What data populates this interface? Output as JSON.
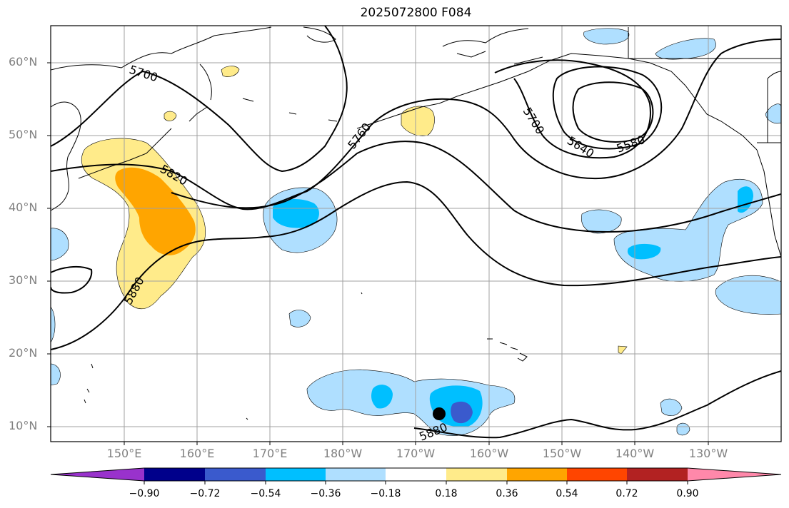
{
  "title": "2025072800 F084",
  "map": {
    "lat_labels": [
      "60°N",
      "50°N",
      "40°N",
      "30°N",
      "20°N",
      "10°N"
    ],
    "lon_labels": [
      "150°E",
      "160°E",
      "170°E",
      "180°W",
      "170°W",
      "160°W",
      "150°W",
      "140°W",
      "130°W"
    ],
    "contour_labels": [
      "5700",
      "5760",
      "5820",
      "5880",
      "5700",
      "5640",
      "5580",
      "5880"
    ],
    "extent": {
      "lon_west": 140,
      "lon_east": 240,
      "lat_south": 8,
      "lat_north": 65
    },
    "contour_color": "#000000",
    "grid": true
  },
  "colorbar": {
    "ticks": [
      "−0.90",
      "−0.72",
      "−0.54",
      "−0.36",
      "−0.18",
      "0.18",
      "0.36",
      "0.54",
      "0.72",
      "0.90"
    ],
    "colors": [
      "#9932cc",
      "#00008b",
      "#3a5acd",
      "#00bfff",
      "#afdfff",
      "#ffffff",
      "#ffeb8a",
      "#ffa500",
      "#ff4500",
      "#b22222",
      "#ff88aa"
    ]
  }
}
